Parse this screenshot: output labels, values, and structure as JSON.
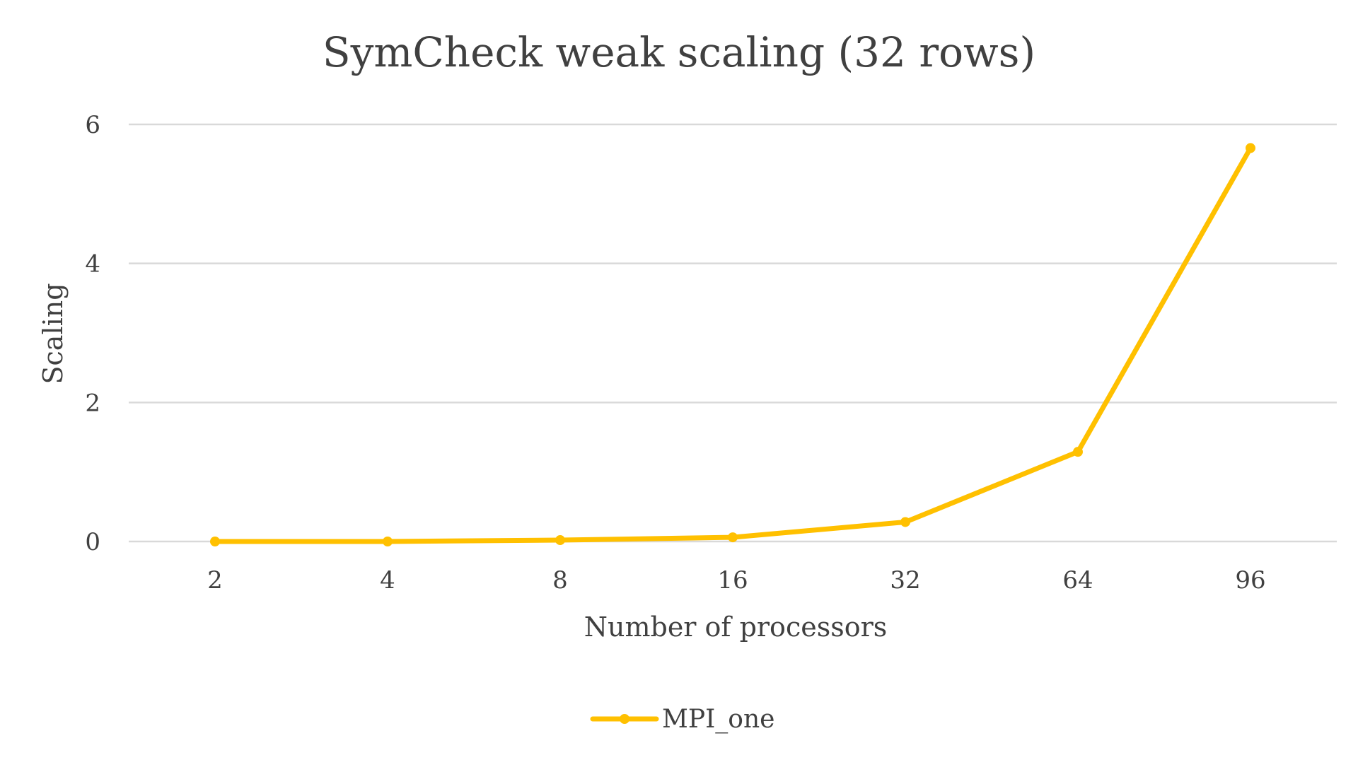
{
  "chart_data": {
    "type": "line",
    "title": "SymCheck weak scaling (32 rows)",
    "xlabel": "Number of processors",
    "ylabel": "Scaling",
    "categories": [
      "2",
      "4",
      "8",
      "16",
      "32",
      "64",
      "96"
    ],
    "series": [
      {
        "name": "MPI_one",
        "values": [
          0.0,
          0.0,
          0.02,
          0.06,
          0.28,
          1.29,
          5.66
        ],
        "color": "#ffc000"
      }
    ],
    "ylim": [
      0,
      6
    ],
    "yticks": [
      "0",
      "2",
      "4",
      "6"
    ],
    "grid": true,
    "legend_position": "bottom"
  }
}
